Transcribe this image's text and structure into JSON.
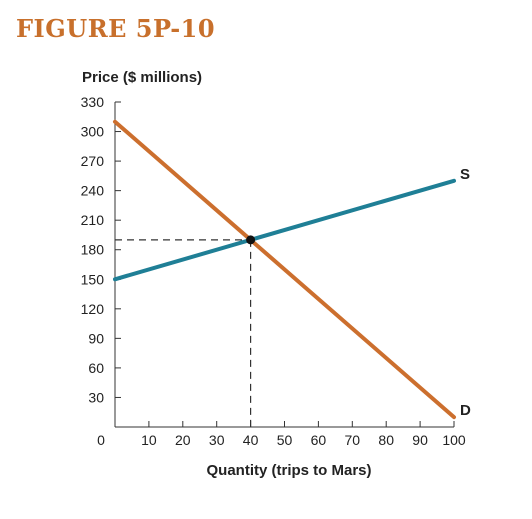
{
  "figure_label": "FIGURE 5P-10",
  "chart_data": {
    "type": "line",
    "title": "FIGURE 5P-10",
    "ylabel": "Price ($ millions)",
    "xlabel": "Quantity (trips to Mars)",
    "xlim": [
      0,
      100
    ],
    "ylim": [
      0,
      330
    ],
    "origin_label": "0",
    "x_ticks": [
      10,
      20,
      30,
      40,
      50,
      60,
      70,
      80,
      90,
      100
    ],
    "y_ticks": [
      30,
      60,
      90,
      120,
      150,
      180,
      210,
      240,
      270,
      300,
      330
    ],
    "series": [
      {
        "name": "S",
        "x": [
          0,
          100
        ],
        "y": [
          150,
          250
        ],
        "color": "#1f7f96"
      },
      {
        "name": "D",
        "x": [
          0,
          100
        ],
        "y": [
          310,
          10
        ],
        "color": "#cc6f2e"
      }
    ],
    "equilibrium": {
      "x": 40,
      "y": 190
    },
    "grid": false
  }
}
